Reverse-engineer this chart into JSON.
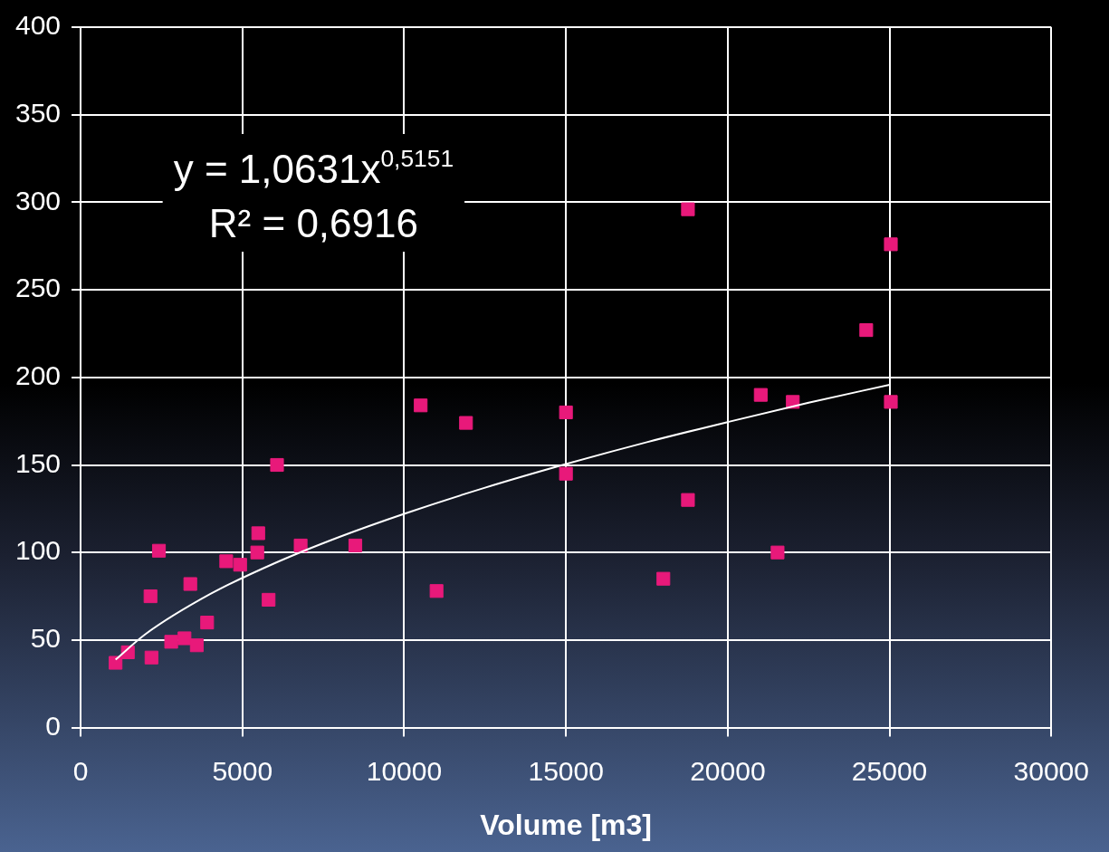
{
  "chart_data": {
    "type": "scatter",
    "xlabel": "Volume [m3]",
    "annotations": [
      "y = 1,0631x$^{0,5151}$",
      "R² = 0,6916"
    ],
    "xlim": [
      0,
      30000
    ],
    "xticks": [
      0,
      5000,
      10000,
      15000,
      20000,
      25000,
      30000
    ],
    "ylim": [
      0,
      400
    ],
    "yticks": [
      0,
      50,
      100,
      150,
      200,
      250,
      300,
      350,
      400
    ],
    "grid": true,
    "legend": false,
    "series": [
      {
        "color": "#e8197a",
        "marker": "square",
        "x": [
          1080,
          1460,
          2160,
          2190,
          2420,
          2800,
          3210,
          3390,
          3590,
          3910,
          4500,
          4930,
          5460,
          5490,
          5810,
          6070,
          6800,
          8490,
          10510,
          11000,
          11910,
          15000,
          15000,
          18010,
          18770,
          18770,
          21020,
          21540,
          22010,
          24280,
          25040,
          25040
        ],
        "values": [
          37,
          43,
          75,
          40,
          101,
          49,
          51,
          82,
          47,
          60,
          95,
          93,
          100,
          111,
          73,
          150,
          104,
          104,
          184,
          78,
          174,
          180,
          145,
          85,
          296,
          130,
          190,
          100,
          186,
          227,
          276,
          186
        ]
      },
      {
        "type": "line",
        "marker": "none",
        "color": "#ffffff",
        "x": [
          1080,
          2000,
          4000,
          6000,
          8000,
          10000,
          12500,
          15000,
          17500,
          20000,
          22500,
          25000
        ],
        "values": [
          38.8,
          53.3,
          76.2,
          93.9,
          108.9,
          122.1,
          137.0,
          150.5,
          163.0,
          174.5,
          185.5,
          195.8
        ]
      }
    ]
  }
}
